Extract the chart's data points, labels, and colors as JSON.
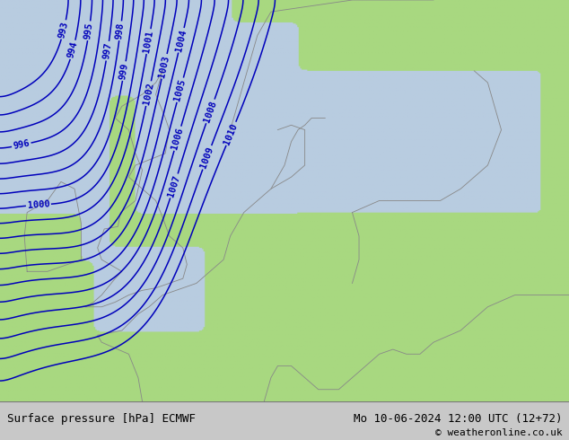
{
  "title_left": "Surface pressure [hPa] ECMWF",
  "title_right": "Mo 10-06-2024 12:00 UTC (12+72)",
  "copyright": "© weatheronline.co.uk",
  "bg_land_color": "#a8d880",
  "bg_sea_color": "#b8cce0",
  "contour_color": "#0000bb",
  "border_color": "#888888",
  "label_color": "#0000bb",
  "bottom_bar_color": "#c8c8c8",
  "bottom_text_color": "#000000",
  "pressure_levels": [
    993,
    994,
    995,
    996,
    997,
    998,
    999,
    1000,
    1001,
    1002,
    1003,
    1004,
    1005,
    1006,
    1007,
    1008,
    1009,
    1010
  ],
  "figsize": [
    6.34,
    4.9
  ],
  "dpi": 100
}
